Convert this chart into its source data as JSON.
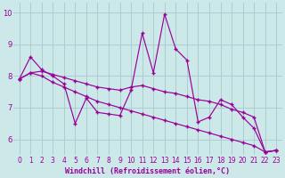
{
  "x": [
    0,
    1,
    2,
    3,
    4,
    5,
    6,
    7,
    8,
    9,
    10,
    11,
    12,
    13,
    14,
    15,
    16,
    17,
    18,
    19,
    20,
    21,
    22,
    23
  ],
  "line_spiky": [
    7.9,
    8.6,
    8.2,
    8.0,
    7.75,
    6.5,
    7.3,
    6.85,
    6.8,
    6.75,
    7.55,
    9.35,
    8.1,
    9.95,
    8.85,
    8.5,
    6.55,
    6.7,
    7.25,
    7.1,
    6.7,
    6.35,
    5.6,
    5.65
  ],
  "line_mid": [
    7.9,
    8.1,
    8.15,
    8.05,
    7.95,
    7.85,
    7.75,
    7.65,
    7.6,
    7.55,
    7.65,
    7.7,
    7.6,
    7.5,
    7.45,
    7.35,
    7.25,
    7.2,
    7.1,
    6.95,
    6.85,
    6.7,
    5.6,
    5.65
  ],
  "line_low": [
    7.9,
    8.1,
    8.0,
    7.8,
    7.65,
    7.5,
    7.35,
    7.2,
    7.1,
    7.0,
    6.9,
    6.8,
    6.7,
    6.6,
    6.5,
    6.4,
    6.3,
    6.2,
    6.1,
    6.0,
    5.9,
    5.8,
    5.6,
    5.65
  ],
  "color": "#990099",
  "bg_color": "#cce8e8",
  "grid_color": "#aacfcf",
  "xlabel": "Windchill (Refroidissement éolien,°C)",
  "ylim": [
    5.5,
    10.3
  ],
  "xlim_min": -0.5,
  "xlim_max": 23.5,
  "yticks": [
    6,
    7,
    8,
    9,
    10
  ],
  "xticks": [
    0,
    1,
    2,
    3,
    4,
    5,
    6,
    7,
    8,
    9,
    10,
    11,
    12,
    13,
    14,
    15,
    16,
    17,
    18,
    19,
    20,
    21,
    22,
    23
  ],
  "tick_fontsize": 5.5,
  "xlabel_fontsize": 6.0
}
